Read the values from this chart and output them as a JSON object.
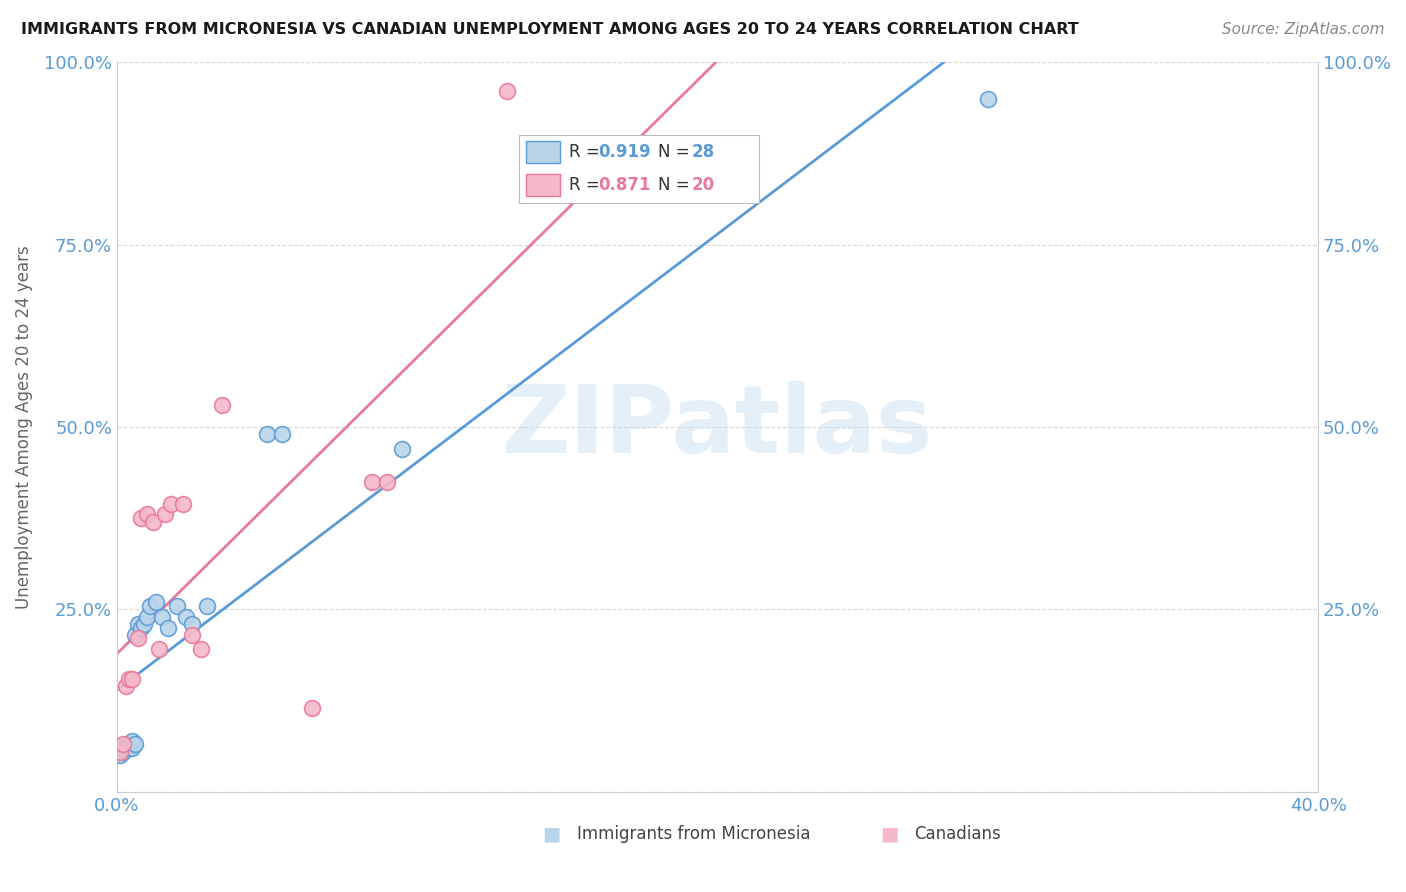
{
  "title": "IMMIGRANTS FROM MICRONESIA VS CANADIAN UNEMPLOYMENT AMONG AGES 20 TO 24 YEARS CORRELATION CHART",
  "source": "Source: ZipAtlas.com",
  "ylabel": "Unemployment Among Ages 20 to 24 years",
  "r_blue": 0.919,
  "n_blue": 28,
  "r_pink": 0.871,
  "n_pink": 20,
  "xlim": [
    0.0,
    0.4
  ],
  "ylim": [
    0.0,
    1.0
  ],
  "blue_color": "#b8d4ea",
  "pink_color": "#f5b8c8",
  "blue_line_color": "#5b9bd5",
  "pink_line_color": "#e8799a",
  "watermark": "ZIPatlas",
  "blue_scatter_x": [
    0.001,
    0.002,
    0.002,
    0.003,
    0.003,
    0.004,
    0.004,
    0.004,
    0.005,
    0.005,
    0.006,
    0.006,
    0.007,
    0.008,
    0.009,
    0.01,
    0.011,
    0.013,
    0.015,
    0.017,
    0.02,
    0.023,
    0.025,
    0.03,
    0.05,
    0.055,
    0.095,
    0.29
  ],
  "blue_scatter_y": [
    0.05,
    0.055,
    0.058,
    0.06,
    0.062,
    0.06,
    0.062,
    0.065,
    0.06,
    0.07,
    0.065,
    0.215,
    0.23,
    0.225,
    0.23,
    0.24,
    0.255,
    0.26,
    0.24,
    0.225,
    0.255,
    0.24,
    0.23,
    0.255,
    0.49,
    0.49,
    0.47,
    0.95
  ],
  "pink_scatter_x": [
    0.001,
    0.002,
    0.003,
    0.004,
    0.005,
    0.007,
    0.008,
    0.01,
    0.012,
    0.014,
    0.016,
    0.018,
    0.022,
    0.025,
    0.028,
    0.035,
    0.065,
    0.085,
    0.09,
    0.13
  ],
  "pink_scatter_y": [
    0.055,
    0.065,
    0.145,
    0.155,
    0.155,
    0.21,
    0.375,
    0.38,
    0.37,
    0.195,
    0.38,
    0.395,
    0.395,
    0.215,
    0.195,
    0.53,
    0.115,
    0.425,
    0.425,
    0.96
  ],
  "background_color": "#ffffff",
  "grid_color": "#d8d8d8"
}
